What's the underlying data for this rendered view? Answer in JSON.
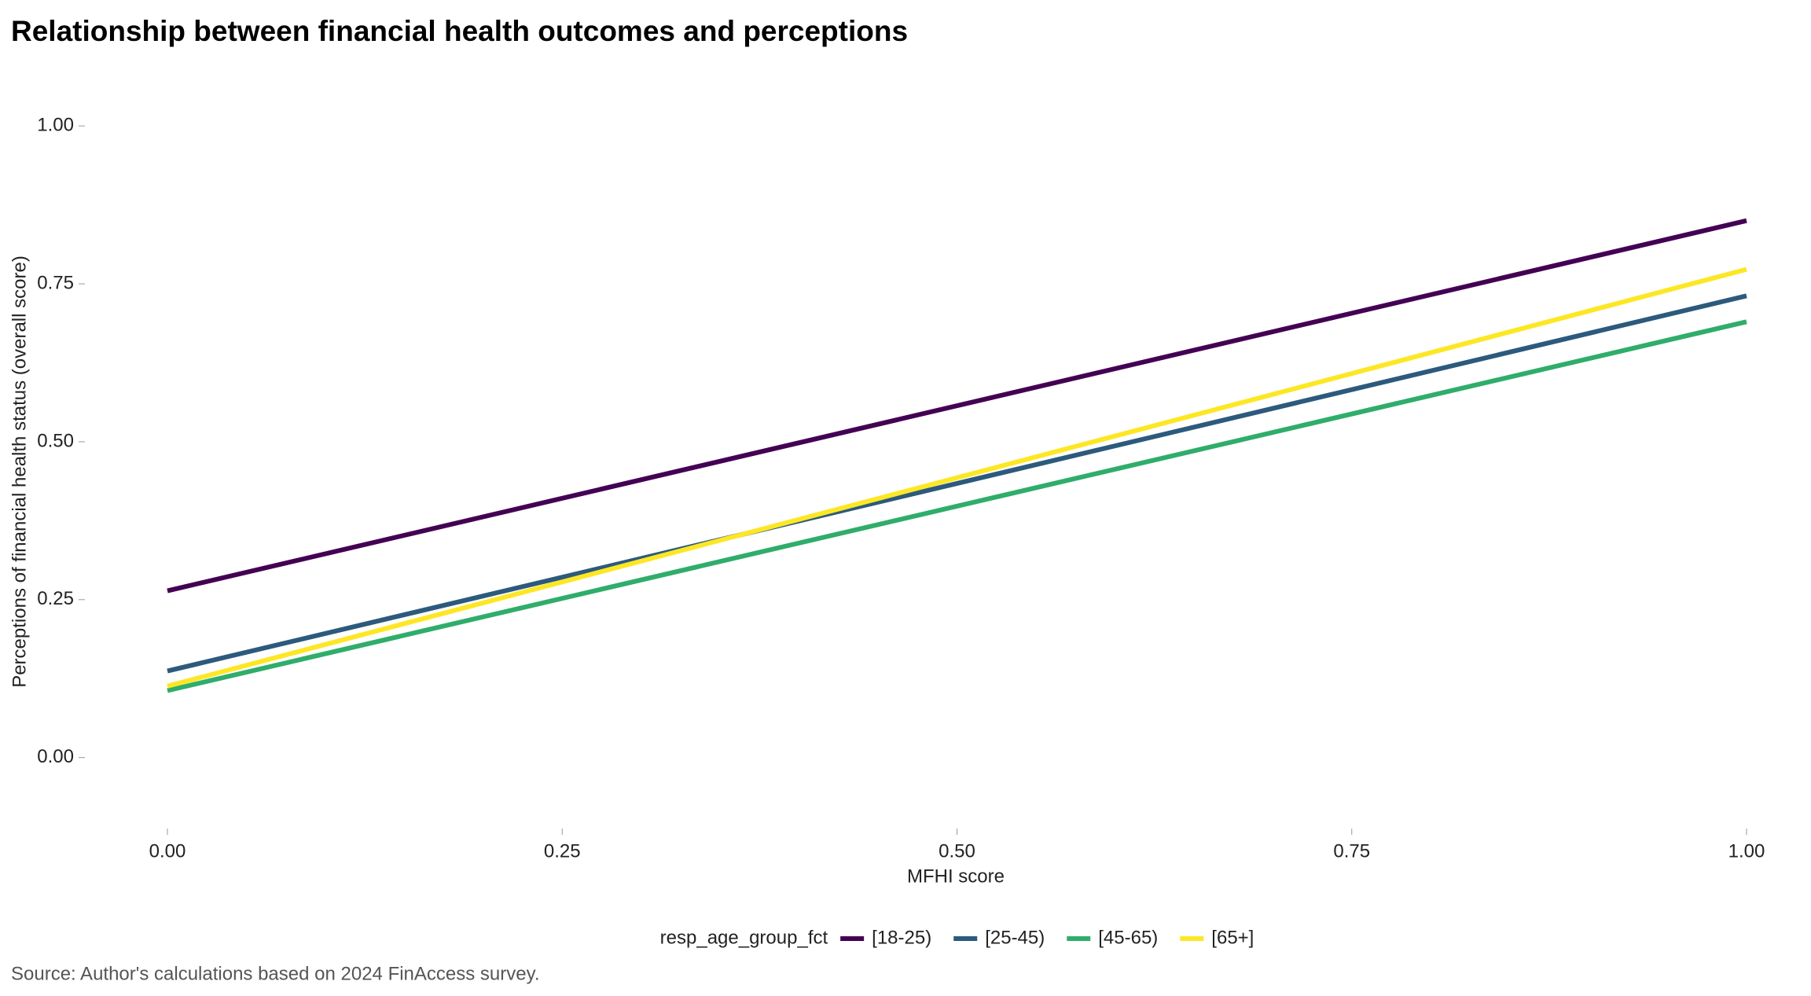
{
  "chart_data": {
    "type": "line",
    "title": "Relationship between financial health outcomes and perceptions",
    "x_label": "MFHI score",
    "y_label": "Perceptions of financial health status (overall score)",
    "legend_title": "resp_age_group_fct",
    "legend_position": "bottom",
    "source": "Source: Author's calculations based on 2024 FinAccess survey.",
    "x": [
      0,
      1
    ],
    "series": [
      {
        "name": "[18-25)",
        "color": "#440154",
        "values": [
          0.264,
          0.85
        ]
      },
      {
        "name": "[25-45)",
        "color": "#2c5a7c",
        "values": [
          0.137,
          0.731
        ]
      },
      {
        "name": "[45-65)",
        "color": "#2fad6a",
        "values": [
          0.106,
          0.69
        ]
      },
      {
        "name": "[65+]",
        "color": "#fde725",
        "values": [
          0.113,
          0.773
        ]
      }
    ],
    "xlim": [
      0,
      1
    ],
    "xticks": [
      {
        "value": 0,
        "label": "0.00"
      },
      {
        "value": 0.25,
        "label": "0.25"
      },
      {
        "value": 0.5,
        "label": "0.50"
      },
      {
        "value": 0.75,
        "label": "0.75"
      },
      {
        "value": 1,
        "label": "1.00"
      }
    ],
    "ylim": [
      -0.1,
      1.06
    ],
    "yticks": [
      {
        "value": 0,
        "label": "0.00"
      },
      {
        "value": 0.25,
        "label": "0.25"
      },
      {
        "value": 0.5,
        "label": "0.50"
      },
      {
        "value": 0.75,
        "label": "0.75"
      },
      {
        "value": 1,
        "label": "1.00"
      }
    ],
    "grid": false
  }
}
